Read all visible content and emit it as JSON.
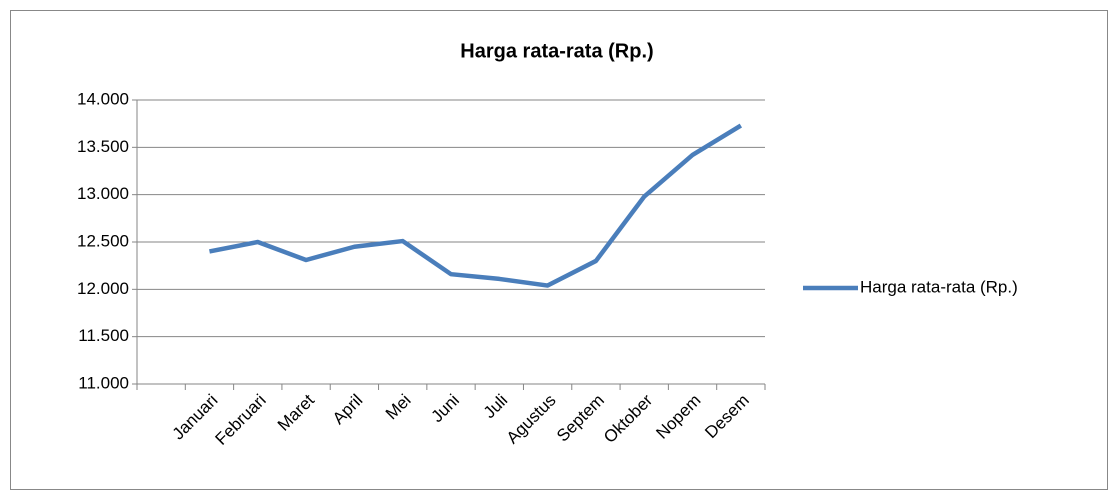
{
  "chart_data": {
    "type": "line",
    "title": "Harga rata-rata (Rp.)",
    "categories": [
      null,
      "Januari",
      "Februari",
      "Maret",
      "April",
      "Mei",
      "Juni",
      "Juli",
      "Agustus",
      "Septem",
      "Oktober",
      "Nopem",
      "Desem"
    ],
    "series": [
      {
        "name": "Harga rata-rata (Rp.)",
        "color": "#4a7ebb",
        "values": [
          null,
          12400,
          12500,
          12310,
          12450,
          12510,
          12160,
          12110,
          12040,
          12300,
          12980,
          13420,
          13730
        ]
      }
    ],
    "ylim": [
      11000,
      14000
    ],
    "yticks": [
      {
        "value": 11000,
        "label": "11.000"
      },
      {
        "value": 11500,
        "label": "11.500"
      },
      {
        "value": 12000,
        "label": "12.000"
      },
      {
        "value": 12500,
        "label": "12.500"
      },
      {
        "value": 13000,
        "label": "13.000"
      },
      {
        "value": 13500,
        "label": "13.500"
      },
      {
        "value": 14000,
        "label": "14.000"
      }
    ],
    "grid": true,
    "legend": "right"
  }
}
